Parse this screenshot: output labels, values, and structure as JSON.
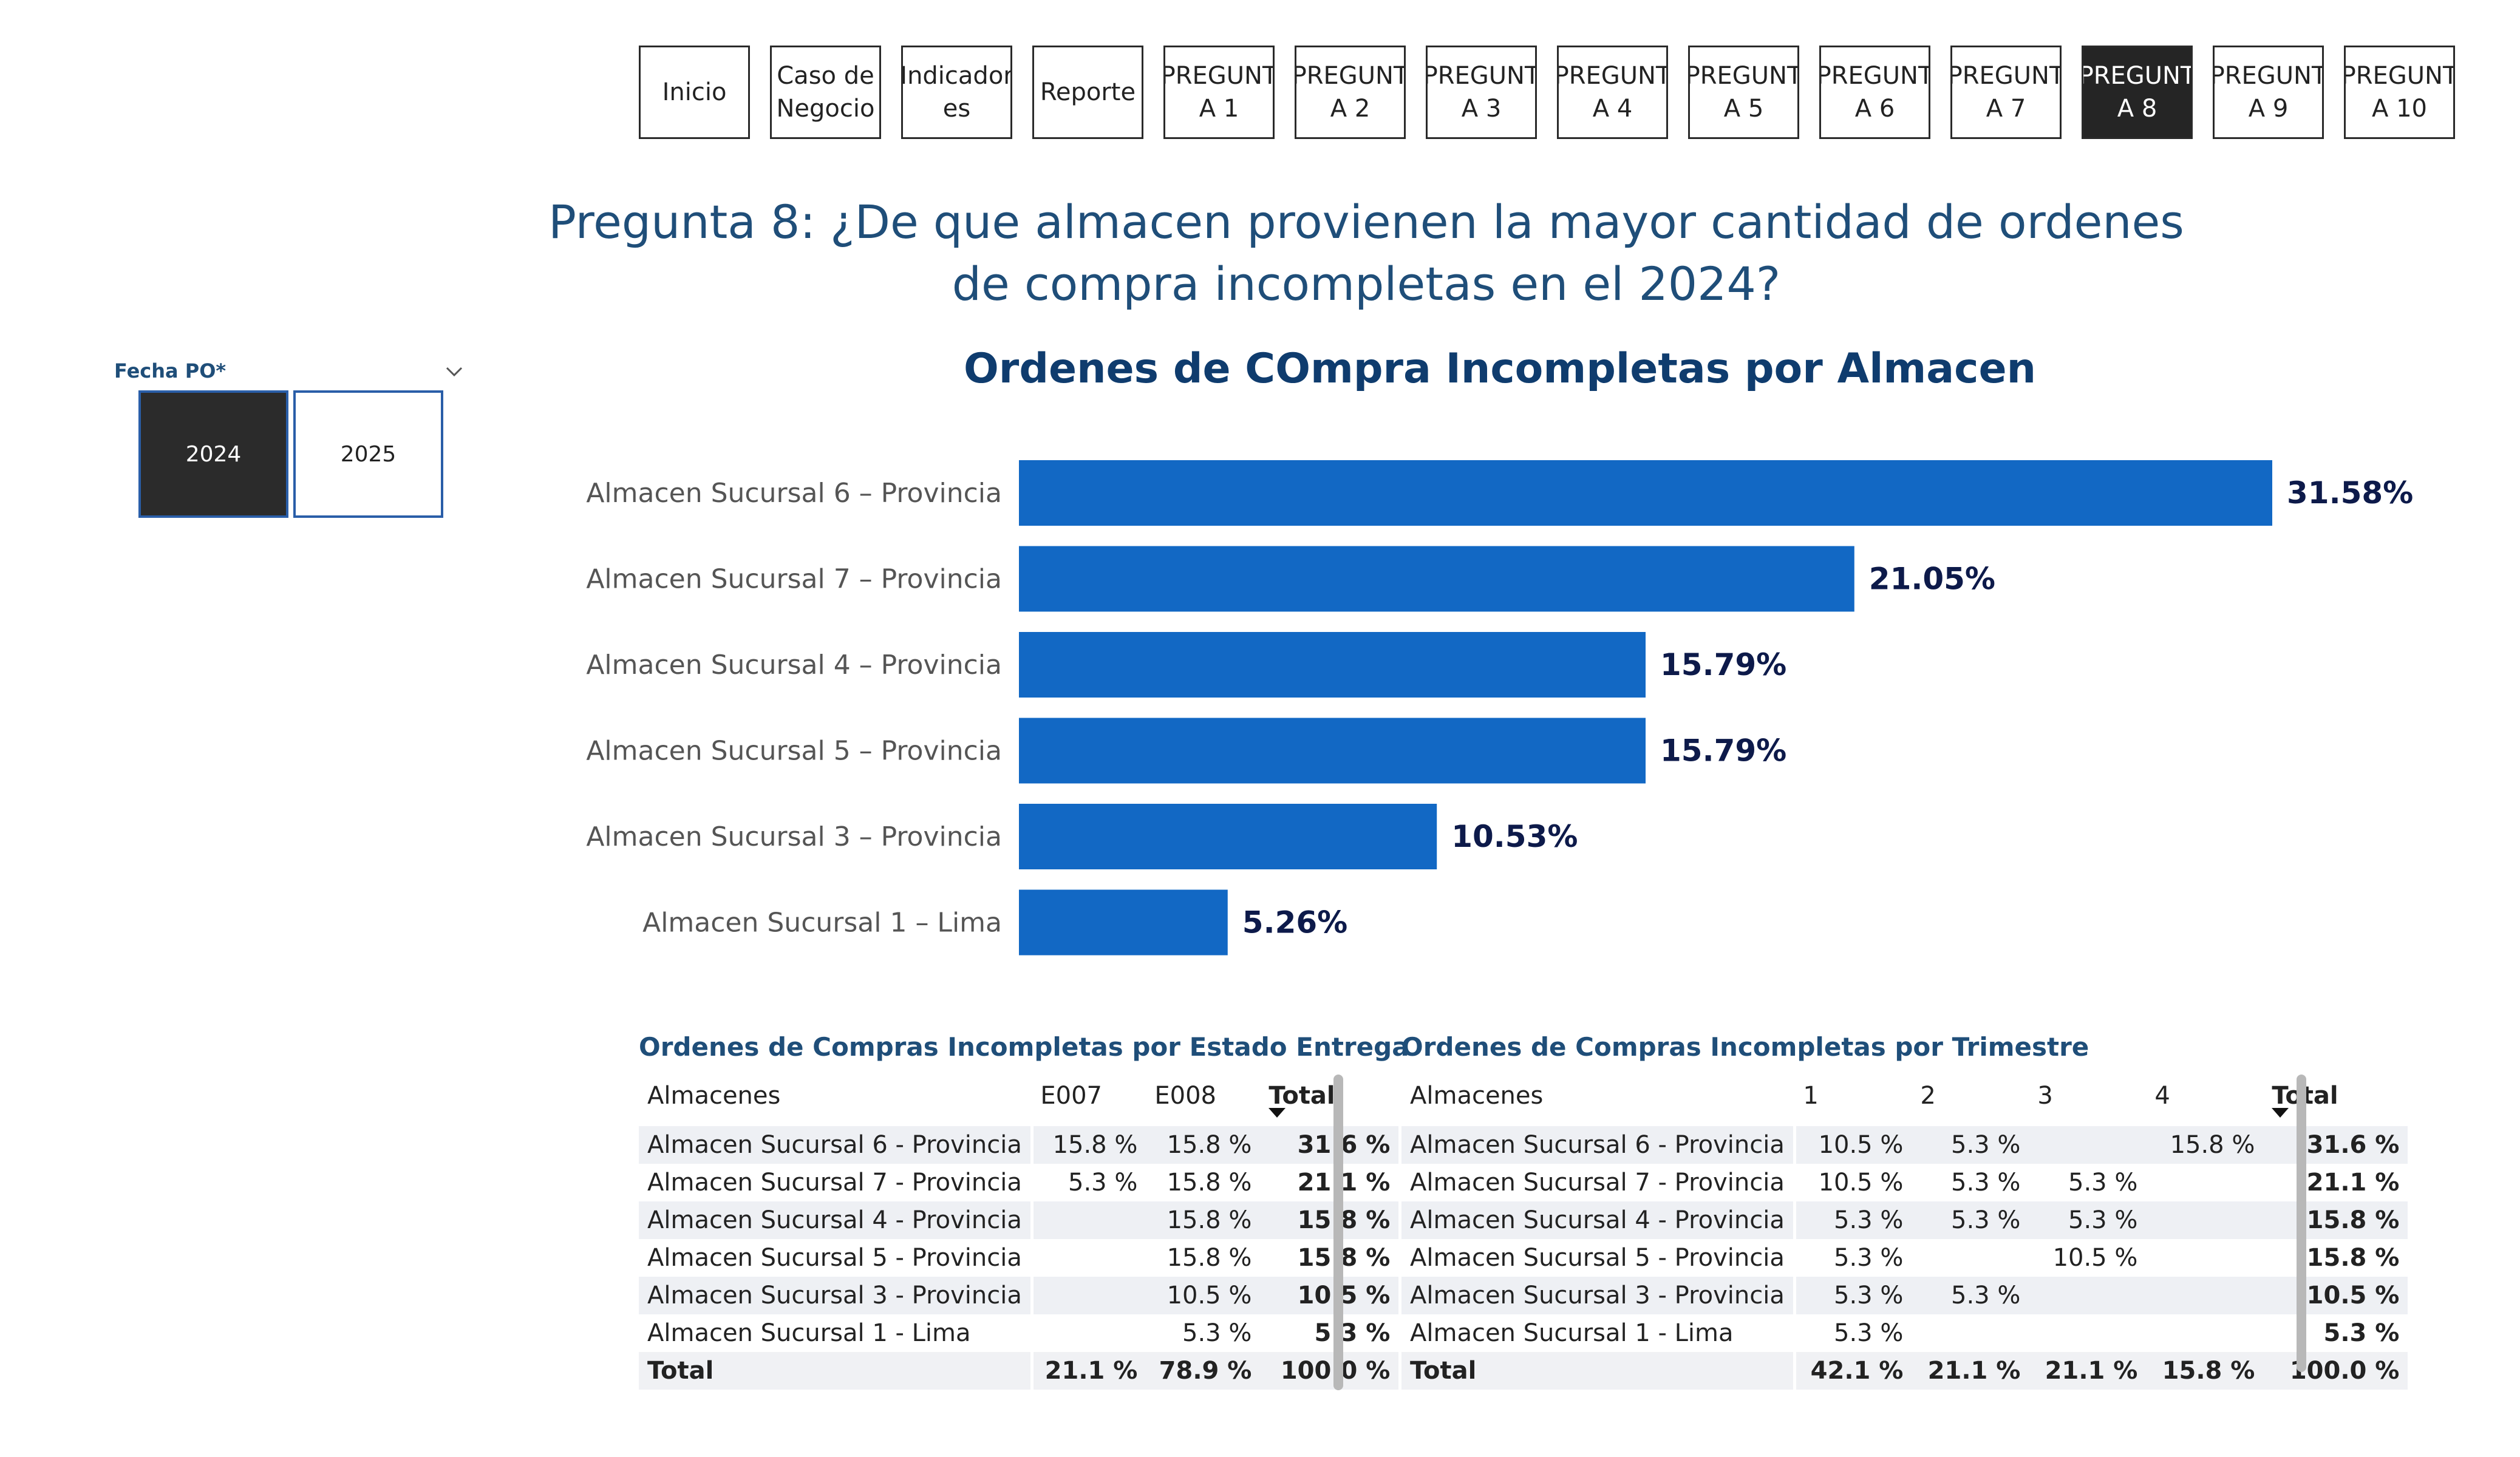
{
  "nav": {
    "items": [
      {
        "label": "Inicio",
        "active": false
      },
      {
        "label": "Caso de\nNegocio",
        "active": false
      },
      {
        "label": "Indicador\nes",
        "active": false
      },
      {
        "label": "Reporte",
        "active": false
      },
      {
        "label": "PREGUNT\nA 1",
        "active": false
      },
      {
        "label": "PREGUNT\nA 2",
        "active": false
      },
      {
        "label": "PREGUNT\nA 3",
        "active": false
      },
      {
        "label": "PREGUNT\nA 4",
        "active": false
      },
      {
        "label": "PREGUNT\nA 5",
        "active": false
      },
      {
        "label": "PREGUNT\nA 6",
        "active": false
      },
      {
        "label": "PREGUNT\nA 7",
        "active": false
      },
      {
        "label": "PREGUNT\nA 8",
        "active": true
      },
      {
        "label": "PREGUNT\nA 9",
        "active": false
      },
      {
        "label": "PREGUNT\nA 10",
        "active": false
      }
    ]
  },
  "page_title": "Pregunta 8: ¿De que almacen provienen la mayor cantidad de ordenes de compra incompletas en el 2024?",
  "slicer": {
    "label": "Fecha PO*",
    "options": [
      {
        "label": "2024",
        "selected": true
      },
      {
        "label": "2025",
        "selected": false
      }
    ]
  },
  "chart_data": {
    "type": "bar",
    "orientation": "horizontal",
    "title": "Ordenes de COmpra Incompletas por Almacen",
    "categories": [
      "Almacen Sucursal 6 – Provincia",
      "Almacen Sucursal 7 – Provincia",
      "Almacen Sucursal 4 – Provincia",
      "Almacen Sucursal 5 – Provincia",
      "Almacen Sucursal 3 – Provincia",
      "Almacen Sucursal 1 – Lima"
    ],
    "values": [
      31.58,
      21.05,
      15.79,
      15.79,
      10.53,
      5.26
    ],
    "data_labels": [
      "31.58%",
      "21.05%",
      "15.79%",
      "15.79%",
      "10.53%",
      "5.26%"
    ],
    "xlim": [
      0,
      31.58
    ],
    "bar_color": "#1268c4"
  },
  "table_estado": {
    "title": "Ordenes de Compras Incompletas por Estado Entrega",
    "headers": [
      "Almacenes",
      "E007",
      "E008",
      "Total"
    ],
    "rows": [
      [
        "Almacen Sucursal 6 - Provincia",
        "15.8 %",
        "15.8 %",
        "31.6 %"
      ],
      [
        "Almacen Sucursal 7 - Provincia",
        "5.3 %",
        "15.8 %",
        "21.1 %"
      ],
      [
        "Almacen Sucursal 4 - Provincia",
        "",
        "15.8 %",
        "15.8 %"
      ],
      [
        "Almacen Sucursal 5 - Provincia",
        "",
        "15.8 %",
        "15.8 %"
      ],
      [
        "Almacen Sucursal 3 - Provincia",
        "",
        "10.5 %",
        "10.5 %"
      ],
      [
        "Almacen Sucursal 1 - Lima",
        "",
        "5.3 %",
        "5.3 %"
      ]
    ],
    "total": [
      "Total",
      "21.1 %",
      "78.9 %",
      "100.0 %"
    ]
  },
  "table_trimestre": {
    "title": "Ordenes de Compras Incompletas por Trimestre",
    "headers": [
      "Almacenes",
      "1",
      "2",
      "3",
      "4",
      "Total"
    ],
    "rows": [
      [
        "Almacen Sucursal 6 - Provincia",
        "10.5 %",
        "5.3 %",
        "",
        "15.8 %",
        "31.6 %"
      ],
      [
        "Almacen Sucursal 7 - Provincia",
        "10.5 %",
        "5.3 %",
        "5.3 %",
        "",
        "21.1 %"
      ],
      [
        "Almacen Sucursal 4 - Provincia",
        "5.3 %",
        "5.3 %",
        "5.3 %",
        "",
        "15.8 %"
      ],
      [
        "Almacen Sucursal 5 - Provincia",
        "5.3 %",
        "",
        "10.5 %",
        "",
        "15.8 %"
      ],
      [
        "Almacen Sucursal 3 - Provincia",
        "5.3 %",
        "5.3 %",
        "",
        "",
        "10.5 %"
      ],
      [
        "Almacen Sucursal 1 - Lima",
        "5.3 %",
        "",
        "",
        "",
        "5.3 %"
      ]
    ],
    "total": [
      "Total",
      "42.1 %",
      "21.1 %",
      "21.1 %",
      "15.8 %",
      "100.0 %"
    ]
  }
}
